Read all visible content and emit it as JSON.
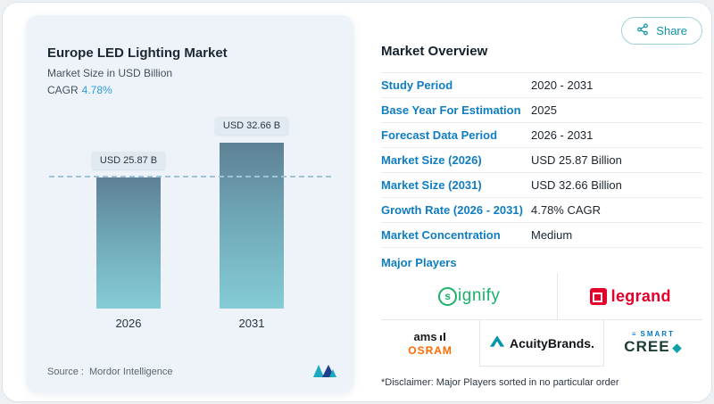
{
  "share": {
    "label": "Share"
  },
  "chart": {
    "title": "Europe LED Lighting Market",
    "subtitle": "Market Size in USD Billion",
    "cagr_label": "CAGR",
    "cagr_value": "4.78%",
    "source_label": "Source :",
    "source_value": "Mordor Intelligence"
  },
  "chart_data": {
    "type": "bar",
    "title": "Europe LED Lighting Market",
    "ylabel": "Market Size in USD Billion",
    "categories": [
      "2026",
      "2031"
    ],
    "values": [
      25.87,
      32.66
    ],
    "value_labels": [
      "USD 25.87 B",
      "USD 32.66 B"
    ],
    "ylim": [
      0,
      32.66
    ],
    "reference_line": 25.87,
    "grid": "off",
    "legend": "none"
  },
  "overview": {
    "title": "Market Overview",
    "rows": [
      {
        "label": "Study Period",
        "value": "2020 - 2031"
      },
      {
        "label": "Base Year For Estimation",
        "value": "2025"
      },
      {
        "label": "Forecast Data Period",
        "value": "2026 - 2031"
      },
      {
        "label": "Market Size (2026)",
        "value": "USD 25.87 Billion"
      },
      {
        "label": "Market Size (2031)",
        "value": "USD 32.66 Billion"
      },
      {
        "label": "Growth Rate (2026 - 2031)",
        "value": "4.78% CAGR"
      },
      {
        "label": "Market Concentration",
        "value": "Medium"
      }
    ],
    "major_players_label": "Major Players",
    "players": {
      "signify": {
        "s": "s",
        "rest": "ignify"
      },
      "legrand": {
        "text": "legrand"
      },
      "ams": {
        "line1": "ams",
        "line2": "OSRAM"
      },
      "acuity": {
        "text": "AcuityBrands."
      },
      "cree": {
        "smart_mark": "≡",
        "line1": "SMART",
        "line2": "CREE",
        "mark": "◆"
      }
    },
    "disclaimer": "*Disclaimer: Major Players sorted in no particular order"
  },
  "colors": {
    "label_blue": "#0f7dc2",
    "accent_teal": "#0e93a8",
    "cagr_blue": "#2d9cdb",
    "bar_gradient_top": "#5e8095",
    "bar_gradient_bottom": "#85ccd6",
    "panel_background": "#edf3f8",
    "signify_green": "#17b368",
    "legrand_red": "#e4002b",
    "osram_orange": "#ff6a00",
    "cree_blue": "#0077c8",
    "cree_dark": "#1a3c34"
  }
}
